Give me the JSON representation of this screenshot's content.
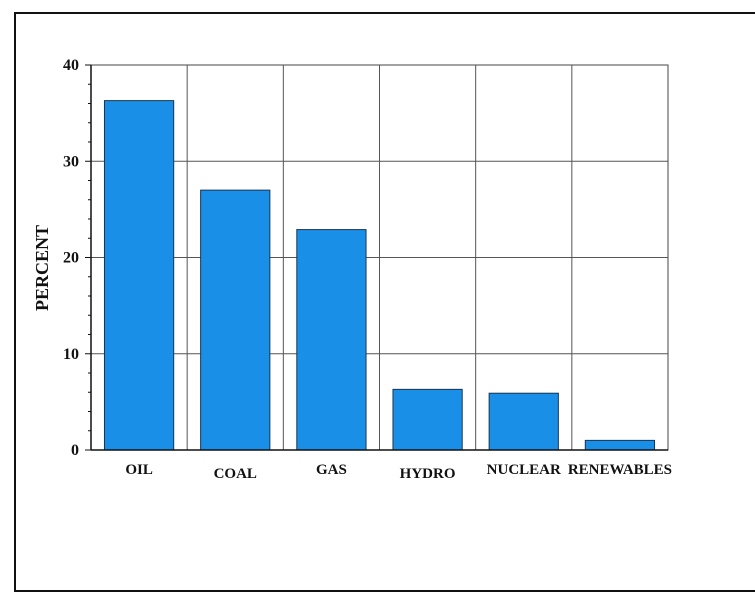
{
  "chart_data": {
    "type": "bar",
    "categories": [
      "OIL",
      "COAL",
      "GAS",
      "HYDRO",
      "NUCLEAR",
      "RENEWABLES"
    ],
    "values": [
      36.3,
      27.0,
      22.9,
      6.3,
      5.9,
      1.0
    ],
    "title": "",
    "xlabel": "",
    "ylabel": "PERCENT",
    "ylim": [
      0,
      40
    ],
    "yticks": [
      "0",
      "10",
      "20",
      "30",
      "40"
    ],
    "grid": true,
    "legend": "none",
    "bar_color": "#1a8fe8",
    "bar_edge_color": "#1a3550"
  }
}
